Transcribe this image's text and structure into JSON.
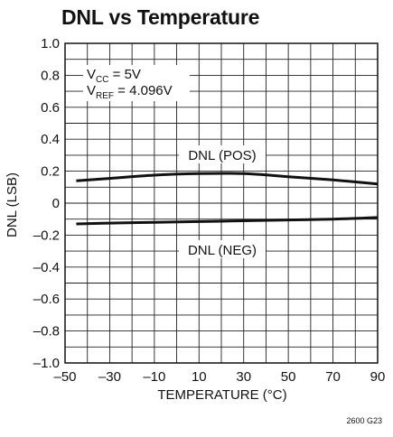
{
  "chart_data": {
    "type": "line",
    "title": "DNL vs Temperature",
    "xlabel": "TEMPERATURE (°C)",
    "ylabel": "DNL (LSB)",
    "xlim": [
      -50,
      90
    ],
    "ylim": [
      -1.0,
      1.0
    ],
    "x_ticks": [
      "–50",
      "–30",
      "–10",
      "10",
      "30",
      "50",
      "70",
      "90"
    ],
    "y_ticks": [
      "1.0",
      "0.8",
      "0.6",
      "0.4",
      "0.2",
      "0",
      "–0.2",
      "–0.4",
      "–0.6",
      "–0.8",
      "–1.0"
    ],
    "grid": true,
    "conditions": {
      "vcc_main": "V",
      "vcc_sub": "CC",
      "vcc_value": " = 5V",
      "vref_main": "V",
      "vref_sub": "REF",
      "vref_value": " = 4.096V"
    },
    "series": [
      {
        "name": "DNL (POS)",
        "x": [
          -45,
          -30,
          -10,
          10,
          30,
          50,
          70,
          90
        ],
        "values": [
          0.14,
          0.155,
          0.175,
          0.185,
          0.185,
          0.165,
          0.145,
          0.12
        ]
      },
      {
        "name": "DNL (NEG)",
        "x": [
          -45,
          -30,
          -10,
          10,
          30,
          50,
          70,
          90
        ],
        "values": [
          -0.13,
          -0.125,
          -0.12,
          -0.115,
          -0.11,
          -0.105,
          -0.1,
          -0.09
        ]
      }
    ]
  },
  "figure_code": "2600 G23"
}
